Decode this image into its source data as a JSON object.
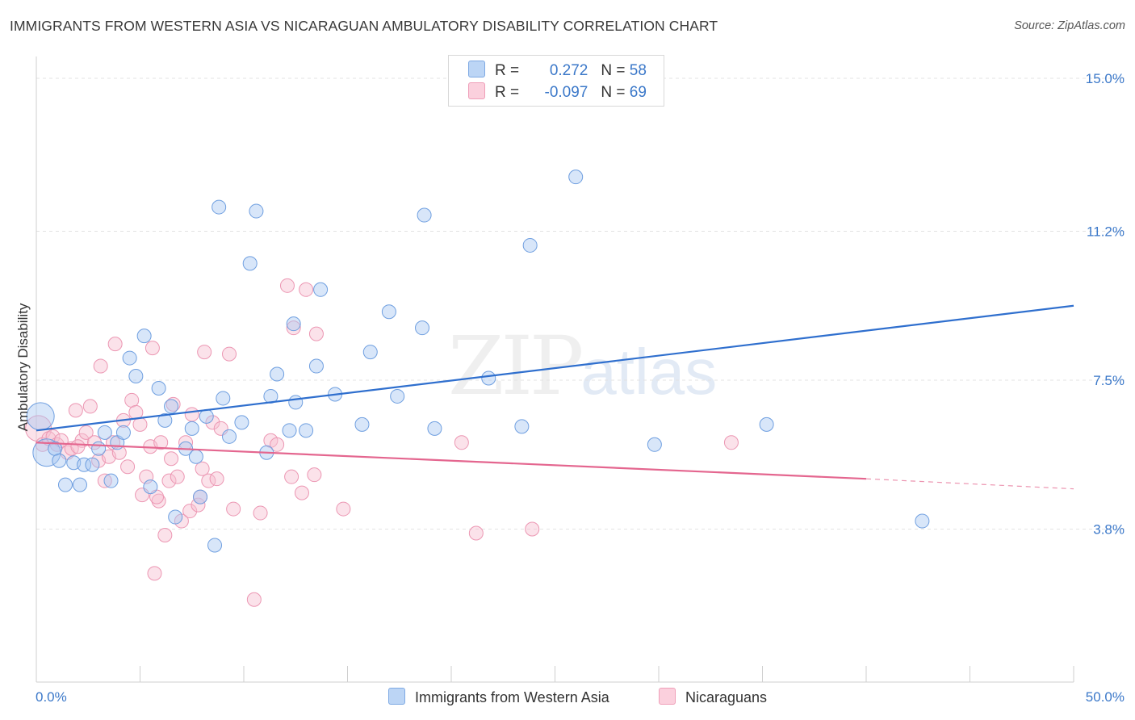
{
  "title": "IMMIGRANTS FROM WESTERN ASIA VS NICARAGUAN AMBULATORY DISABILITY CORRELATION CHART",
  "source": "Source: ZipAtlas.com",
  "watermark": {
    "zip": "ZIP",
    "atlas": "atlas"
  },
  "legend": {
    "rows": [
      {
        "r_label": "R = ",
        "r_value": "0.272",
        "n_label": "N = ",
        "n_value": "58"
      },
      {
        "r_label": "R = ",
        "r_value": "-0.097",
        "n_label": "N = ",
        "n_value": "69"
      }
    ]
  },
  "bottom_legend": [
    {
      "label": "Immigrants from Western Asia"
    },
    {
      "label": "Nicaraguans"
    }
  ],
  "colors": {
    "blue_fill": "#a9c8f2",
    "blue_stroke": "#6f9fe0",
    "blue_line": "#2f6fce",
    "pink_fill": "#f7bfd0",
    "pink_stroke": "#ec97b3",
    "pink_line": "#e4668f",
    "tick_text": "#3b78c9",
    "grid": "#e3e3e3"
  },
  "chart_data": {
    "type": "scatter",
    "title": "IMMIGRANTS FROM WESTERN ASIA VS NICARAGUAN AMBULATORY DISABILITY CORRELATION CHART",
    "xlabel": "",
    "ylabel": "Ambulatory Disability",
    "xlim": [
      0,
      50
    ],
    "ylim": [
      0,
      15.5
    ],
    "x_tick_labels": [
      "0.0%",
      "50.0%"
    ],
    "y_ticks": [
      3.8,
      7.5,
      11.2,
      15.0
    ],
    "y_tick_labels": [
      "3.8%",
      "7.5%",
      "11.2%",
      "15.0%"
    ],
    "grid": true,
    "series": [
      {
        "name": "Immigrants from Western Asia",
        "R": 0.272,
        "N": 58,
        "trend": {
          "x0": 0,
          "y0": 6.25,
          "x1": 50,
          "y1": 9.35
        },
        "points": [
          {
            "x": 0.2,
            "y": 6.6,
            "big": true
          },
          {
            "x": 0.5,
            "y": 5.7,
            "big": true
          },
          {
            "x": 0.9,
            "y": 5.8
          },
          {
            "x": 1.1,
            "y": 5.5
          },
          {
            "x": 1.4,
            "y": 4.9
          },
          {
            "x": 1.8,
            "y": 5.45
          },
          {
            "x": 2.1,
            "y": 4.9
          },
          {
            "x": 2.3,
            "y": 5.4
          },
          {
            "x": 2.7,
            "y": 5.4
          },
          {
            "x": 3.0,
            "y": 5.8
          },
          {
            "x": 3.3,
            "y": 6.2
          },
          {
            "x": 3.6,
            "y": 5.0
          },
          {
            "x": 3.9,
            "y": 5.95
          },
          {
            "x": 4.2,
            "y": 6.2
          },
          {
            "x": 4.5,
            "y": 8.05
          },
          {
            "x": 4.8,
            "y": 7.6
          },
          {
            "x": 5.2,
            "y": 8.6
          },
          {
            "x": 5.5,
            "y": 4.85
          },
          {
            "x": 5.9,
            "y": 7.3
          },
          {
            "x": 6.2,
            "y": 6.5
          },
          {
            "x": 6.5,
            "y": 6.85
          },
          {
            "x": 6.7,
            "y": 4.1
          },
          {
            "x": 7.2,
            "y": 5.8
          },
          {
            "x": 7.5,
            "y": 6.3
          },
          {
            "x": 7.7,
            "y": 5.6
          },
          {
            "x": 7.9,
            "y": 4.6
          },
          {
            "x": 8.2,
            "y": 6.6
          },
          {
            "x": 8.6,
            "y": 3.4
          },
          {
            "x": 8.8,
            "y": 11.8
          },
          {
            "x": 9.0,
            "y": 7.05
          },
          {
            "x": 9.9,
            "y": 6.45
          },
          {
            "x": 10.3,
            "y": 10.4
          },
          {
            "x": 10.6,
            "y": 11.7
          },
          {
            "x": 11.1,
            "y": 5.7
          },
          {
            "x": 11.3,
            "y": 7.1
          },
          {
            "x": 11.6,
            "y": 7.65
          },
          {
            "x": 12.2,
            "y": 6.25
          },
          {
            "x": 12.5,
            "y": 6.95
          },
          {
            "x": 13.0,
            "y": 6.25
          },
          {
            "x": 13.5,
            "y": 7.85
          },
          {
            "x": 13.7,
            "y": 9.75
          },
          {
            "x": 14.4,
            "y": 7.15
          },
          {
            "x": 15.7,
            "y": 6.4
          },
          {
            "x": 16.1,
            "y": 8.2
          },
          {
            "x": 17.0,
            "y": 9.2
          },
          {
            "x": 17.4,
            "y": 7.1
          },
          {
            "x": 18.6,
            "y": 8.8
          },
          {
            "x": 18.7,
            "y": 11.6
          },
          {
            "x": 19.2,
            "y": 6.3
          },
          {
            "x": 21.8,
            "y": 7.55
          },
          {
            "x": 23.4,
            "y": 6.35
          },
          {
            "x": 23.8,
            "y": 10.85
          },
          {
            "x": 26.0,
            "y": 12.55
          },
          {
            "x": 29.8,
            "y": 5.9
          },
          {
            "x": 35.2,
            "y": 6.4
          },
          {
            "x": 42.7,
            "y": 4.0
          },
          {
            "x": 12.4,
            "y": 8.9
          },
          {
            "x": 9.3,
            "y": 6.1
          }
        ]
      },
      {
        "name": "Nicaraguans",
        "R": -0.097,
        "N": 69,
        "trend": {
          "x0": 0,
          "y0": 5.95,
          "x1": 40,
          "y1": 5.05,
          "dash_x1": 50,
          "dash_y1": 4.8
        },
        "points": [
          {
            "x": 0.1,
            "y": 6.3,
            "big": true
          },
          {
            "x": 0.3,
            "y": 5.9
          },
          {
            "x": 0.6,
            "y": 6.05
          },
          {
            "x": 0.8,
            "y": 6.1
          },
          {
            "x": 1.0,
            "y": 5.9
          },
          {
            "x": 1.2,
            "y": 6.0
          },
          {
            "x": 1.5,
            "y": 5.7
          },
          {
            "x": 1.7,
            "y": 5.8
          },
          {
            "x": 1.9,
            "y": 6.75
          },
          {
            "x": 2.2,
            "y": 6.0
          },
          {
            "x": 2.4,
            "y": 6.2
          },
          {
            "x": 2.6,
            "y": 6.85
          },
          {
            "x": 2.8,
            "y": 5.95
          },
          {
            "x": 3.0,
            "y": 5.5
          },
          {
            "x": 3.1,
            "y": 7.85
          },
          {
            "x": 3.3,
            "y": 5.0
          },
          {
            "x": 3.5,
            "y": 5.6
          },
          {
            "x": 3.7,
            "y": 5.95
          },
          {
            "x": 3.8,
            "y": 8.4
          },
          {
            "x": 4.0,
            "y": 5.7
          },
          {
            "x": 4.2,
            "y": 6.5
          },
          {
            "x": 4.4,
            "y": 5.35
          },
          {
            "x": 4.6,
            "y": 7.0
          },
          {
            "x": 4.8,
            "y": 6.7
          },
          {
            "x": 5.0,
            "y": 6.4
          },
          {
            "x": 5.1,
            "y": 4.65
          },
          {
            "x": 5.3,
            "y": 5.1
          },
          {
            "x": 5.5,
            "y": 5.85
          },
          {
            "x": 5.6,
            "y": 8.3
          },
          {
            "x": 5.7,
            "y": 2.7
          },
          {
            "x": 5.9,
            "y": 4.5
          },
          {
            "x": 6.0,
            "y": 5.95
          },
          {
            "x": 6.2,
            "y": 3.65
          },
          {
            "x": 6.4,
            "y": 5.0
          },
          {
            "x": 6.5,
            "y": 5.55
          },
          {
            "x": 6.6,
            "y": 6.9
          },
          {
            "x": 6.8,
            "y": 5.1
          },
          {
            "x": 7.0,
            "y": 4.0
          },
          {
            "x": 7.2,
            "y": 5.95
          },
          {
            "x": 7.4,
            "y": 4.25
          },
          {
            "x": 7.5,
            "y": 6.65
          },
          {
            "x": 7.8,
            "y": 4.4
          },
          {
            "x": 8.0,
            "y": 5.3
          },
          {
            "x": 8.1,
            "y": 8.2
          },
          {
            "x": 8.3,
            "y": 5.0
          },
          {
            "x": 8.5,
            "y": 6.45
          },
          {
            "x": 8.7,
            "y": 5.05
          },
          {
            "x": 8.9,
            "y": 6.3
          },
          {
            "x": 9.3,
            "y": 8.15
          },
          {
            "x": 9.5,
            "y": 4.3
          },
          {
            "x": 10.5,
            "y": 2.05
          },
          {
            "x": 10.8,
            "y": 4.2
          },
          {
            "x": 11.3,
            "y": 6.0
          },
          {
            "x": 11.6,
            "y": 5.9
          },
          {
            "x": 12.1,
            "y": 9.85
          },
          {
            "x": 12.3,
            "y": 5.1
          },
          {
            "x": 12.4,
            "y": 8.8
          },
          {
            "x": 12.8,
            "y": 4.7
          },
          {
            "x": 13.0,
            "y": 9.75
          },
          {
            "x": 13.4,
            "y": 5.15
          },
          {
            "x": 13.5,
            "y": 8.65
          },
          {
            "x": 14.8,
            "y": 4.3
          },
          {
            "x": 20.5,
            "y": 5.95
          },
          {
            "x": 21.2,
            "y": 3.7
          },
          {
            "x": 23.9,
            "y": 3.8
          },
          {
            "x": 33.5,
            "y": 5.95
          },
          {
            "x": 7.9,
            "y": 4.6
          },
          {
            "x": 2.0,
            "y": 5.85
          },
          {
            "x": 5.8,
            "y": 4.6
          }
        ]
      }
    ]
  }
}
